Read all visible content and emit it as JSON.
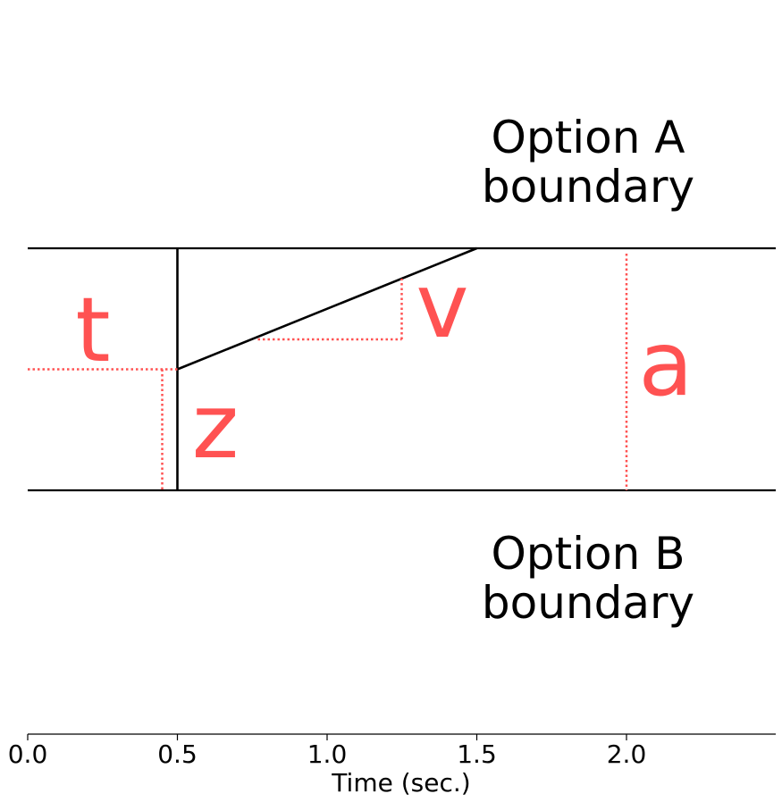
{
  "boundary_labels": {
    "upper_line1": "Option A",
    "upper_line2": "boundary",
    "lower_line1": "Option B",
    "lower_line2": "boundary"
  },
  "parameters": {
    "t": "t",
    "z": "z",
    "v": "v",
    "a": "a"
  },
  "axis": {
    "xlabel": "Time (sec.)",
    "xlim": [
      0,
      2.5
    ],
    "ticks": [
      "0.0",
      "0.5",
      "1.0",
      "1.5",
      "2.0"
    ],
    "tick_values": [
      0,
      0.5,
      1.0,
      1.5,
      2.0
    ]
  },
  "model": {
    "non_decision_time": 0.5,
    "boundary_time": 1.5,
    "start_point_fraction": 0.5,
    "a_marker_time": 2.0
  },
  "colors": {
    "line": "#000000",
    "annotation": "#ff5252"
  }
}
